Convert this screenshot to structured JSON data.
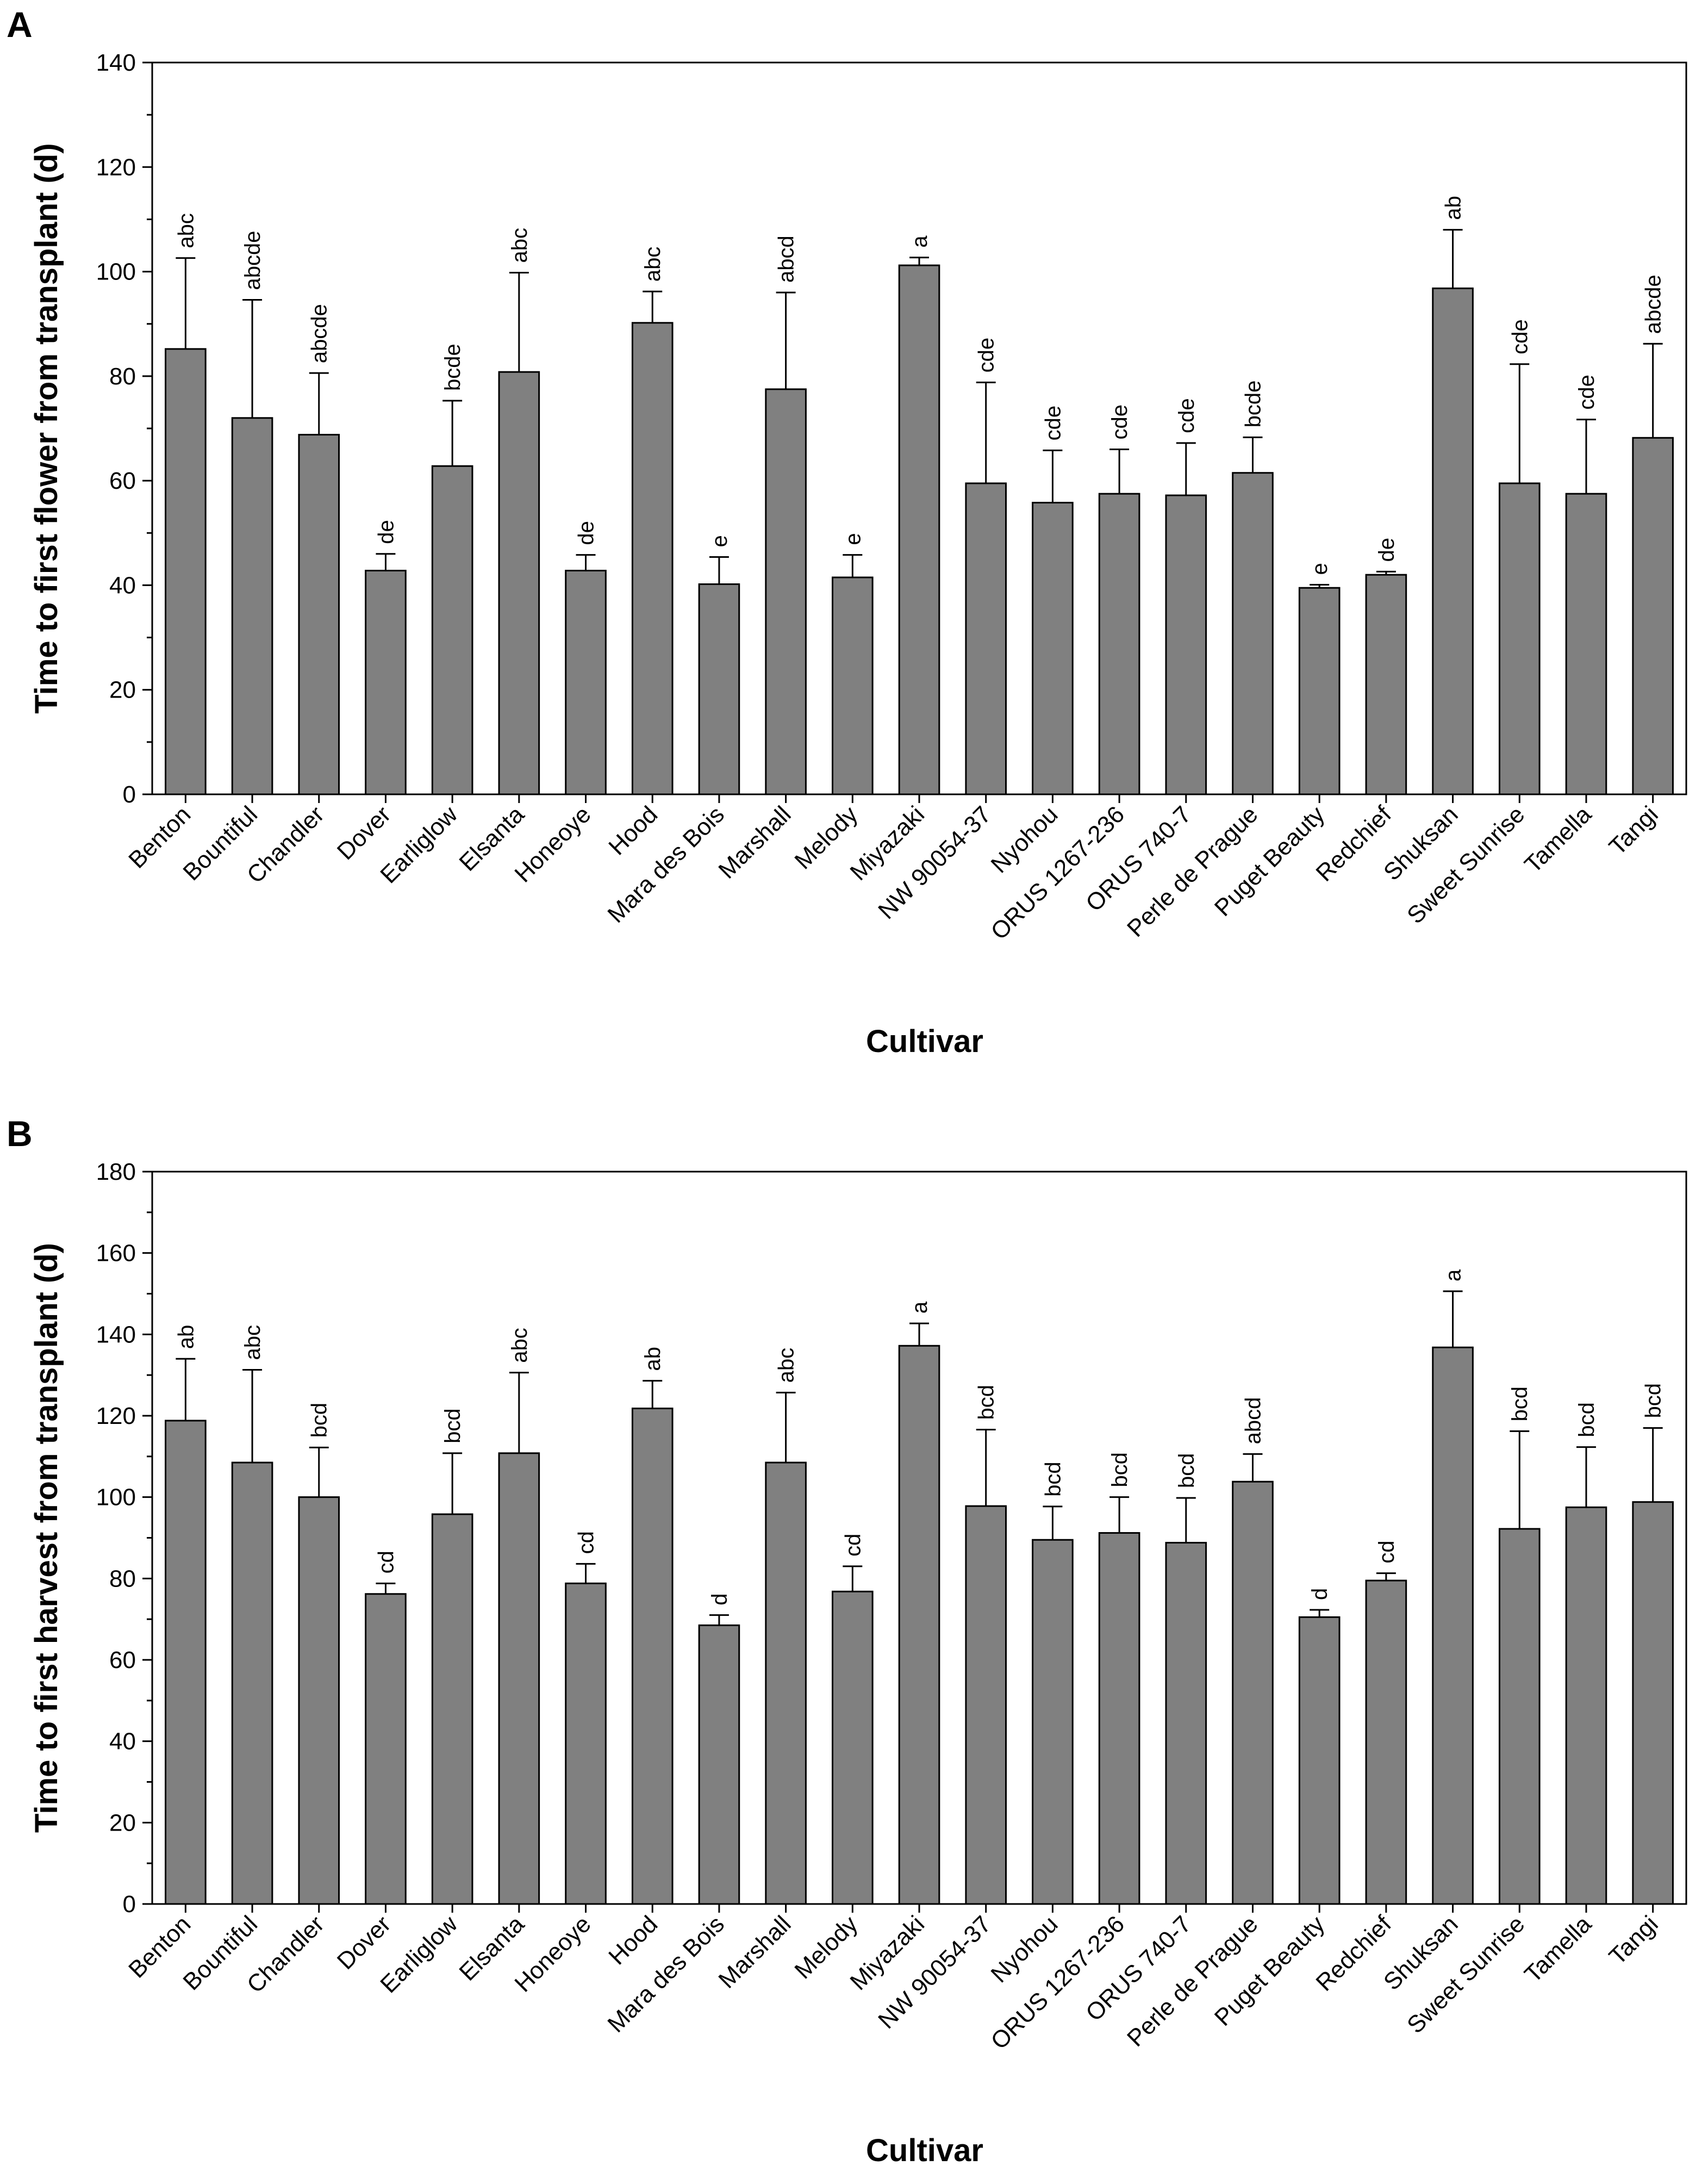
{
  "panels": {
    "a": {
      "letter": "A"
    },
    "b": {
      "letter": "B"
    }
  },
  "chart_data": [
    {
      "type": "bar",
      "panel": "A",
      "title": "",
      "xlabel": "Cultivar",
      "ylabel": "Time to first flower from transplant (d)",
      "ylim": [
        0,
        140
      ],
      "yticks": [
        0,
        20,
        40,
        60,
        80,
        100,
        120,
        140
      ],
      "categories": [
        "Benton",
        "Bountiful",
        "Chandler",
        "Dover",
        "Earliglow",
        "Elsanta",
        "Honeoye",
        "Hood",
        "Mara des Bois",
        "Marshall",
        "Melody",
        "Miyazaki",
        "NW 90054-37",
        "Nyohou",
        "ORUS 1267-236",
        "ORUS 740-7",
        "Perle de Prague",
        "Puget Beauty",
        "Redchief",
        "Shuksan",
        "Sweet Sunrise",
        "Tamella",
        "Tangi"
      ],
      "values": [
        85.2,
        72.0,
        68.8,
        42.8,
        62.8,
        80.8,
        42.8,
        90.2,
        40.2,
        77.5,
        41.5,
        101.2,
        59.5,
        55.8,
        57.5,
        57.2,
        61.5,
        39.5,
        42.0,
        96.8,
        59.5,
        57.5,
        68.2
      ],
      "errors": [
        17.4,
        22.6,
        11.8,
        3.2,
        12.5,
        19.0,
        3.0,
        6.0,
        5.2,
        18.5,
        4.3,
        1.5,
        19.3,
        10.0,
        8.5,
        10.0,
        6.8,
        0.6,
        0.6,
        11.2,
        22.8,
        14.2,
        18.0
      ],
      "significance": [
        "abc",
        "abcde",
        "abcde",
        "de",
        "bcde",
        "abc",
        "de",
        "abc",
        "e",
        "abcd",
        "e",
        "a",
        "cde",
        "cde",
        "cde",
        "cde",
        "bcde",
        "e",
        "de",
        "ab",
        "cde",
        "cde",
        "abcde"
      ]
    },
    {
      "type": "bar",
      "panel": "B",
      "title": "",
      "xlabel": "Cultivar",
      "ylabel": "Time to first harvest from transplant (d)",
      "ylim": [
        0,
        180
      ],
      "yticks": [
        0,
        20,
        40,
        60,
        80,
        100,
        120,
        140,
        160,
        180
      ],
      "categories": [
        "Benton",
        "Bountiful",
        "Chandler",
        "Dover",
        "Earliglow",
        "Elsanta",
        "Honeoye",
        "Hood",
        "Mara des Bois",
        "Marshall",
        "Melody",
        "Miyazaki",
        "NW 90054-37",
        "Nyohou",
        "ORUS 1267-236",
        "ORUS 740-7",
        "Perle de Prague",
        "Puget Beauty",
        "Redchief",
        "Shuksan",
        "Sweet Sunrise",
        "Tamella",
        "Tangi"
      ],
      "values": [
        118.8,
        108.5,
        100.0,
        76.2,
        95.8,
        110.8,
        78.8,
        121.8,
        68.5,
        108.5,
        76.8,
        137.2,
        97.8,
        89.5,
        91.2,
        88.8,
        103.8,
        70.5,
        79.5,
        136.8,
        92.2,
        97.5,
        98.8
      ],
      "errors": [
        15.2,
        22.8,
        12.2,
        2.6,
        15.0,
        19.8,
        4.8,
        6.8,
        2.5,
        17.2,
        6.2,
        5.5,
        18.8,
        8.2,
        8.8,
        11.0,
        6.8,
        1.8,
        1.8,
        13.8,
        24.0,
        14.8,
        18.2
      ],
      "significance": [
        "ab",
        "abc",
        "bcd",
        "cd",
        "bcd",
        "abc",
        "cd",
        "ab",
        "d",
        "abc",
        "cd",
        "a",
        "bcd",
        "bcd",
        "bcd",
        "bcd",
        "abcd",
        "d",
        "cd",
        "a",
        "bcd",
        "bcd",
        "bcd"
      ]
    }
  ]
}
